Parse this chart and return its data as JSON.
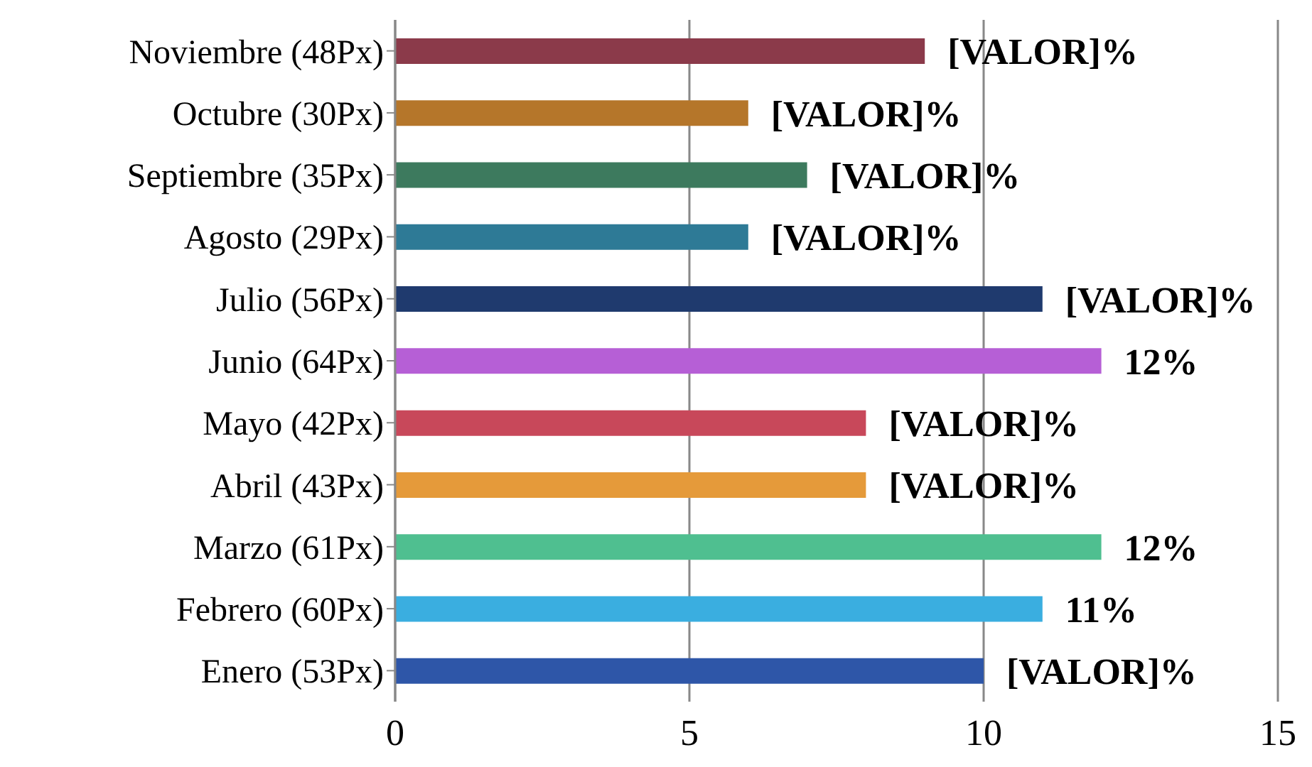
{
  "chart_data": {
    "type": "bar",
    "orientation": "horizontal",
    "categories": [
      "Noviembre (48Px)",
      "Octubre (30Px)",
      "Septiembre (35Px)",
      "Agosto (29Px)",
      "Julio (56Px)",
      "Junio (64Px)",
      "Mayo (42Px)",
      "Abril (43Px)",
      "Marzo (61Px)",
      "Febrero (60Px)",
      "Enero (53Px)"
    ],
    "values": [
      9,
      6,
      7,
      6,
      11,
      12,
      8,
      8,
      12,
      11,
      10
    ],
    "colors": [
      "#8b3a4a",
      "#b5762a",
      "#3d7a5e",
      "#2e7a96",
      "#1f3a6e",
      "#b65fd6",
      "#c8485a",
      "#e59a3a",
      "#4fbf90",
      "#3aaee0",
      "#2e56a8"
    ],
    "value_labels": [
      "[VALOR]%",
      "[VALOR]%",
      "[VALOR]%",
      "[VALOR]%",
      "[VALOR]%",
      "12%",
      "[VALOR]%",
      "[VALOR]%",
      "12%",
      "11%",
      "[VALOR]%"
    ],
    "xlim": [
      0,
      15
    ],
    "xticks": [
      0,
      5,
      10,
      15
    ],
    "grid": "x"
  }
}
